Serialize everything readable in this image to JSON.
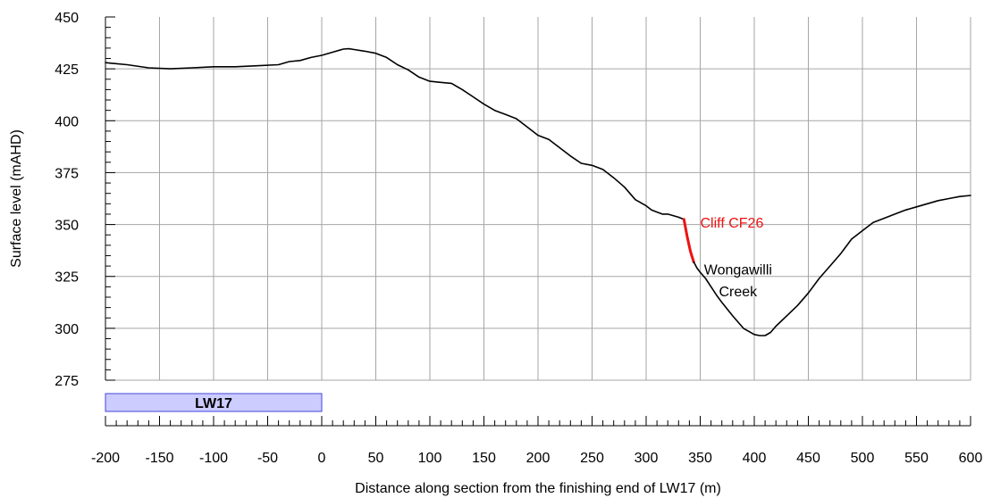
{
  "chart_data": {
    "type": "line",
    "title": "",
    "xlabel": "Distance along section from the finishing end of LW17 (m)",
    "ylabel": "Surface level (mAHD)",
    "xlim": [
      -200,
      600
    ],
    "ylim": [
      275,
      450
    ],
    "x_ticks": [
      -200,
      -150,
      -100,
      -50,
      0,
      50,
      100,
      150,
      200,
      250,
      300,
      350,
      400,
      450,
      500,
      550,
      600
    ],
    "y_ticks": [
      275,
      300,
      325,
      350,
      375,
      400,
      425,
      450
    ],
    "grid": true,
    "series": [
      {
        "color": "#000000",
        "x": [
          -200,
          -180,
          -160,
          -140,
          -120,
          -100,
          -80,
          -60,
          -40,
          -30,
          -20,
          -10,
          0,
          10,
          20,
          25,
          30,
          40,
          50,
          60,
          70,
          80,
          90,
          100,
          110,
          120,
          130,
          140,
          150,
          160,
          170,
          180,
          190,
          200,
          210,
          220,
          230,
          240,
          250,
          260,
          270,
          280,
          290,
          300,
          305,
          310,
          315,
          320,
          330,
          335
        ],
        "y": [
          428,
          427,
          425.5,
          425,
          425.5,
          426,
          426,
          426.5,
          427,
          428.5,
          429,
          430.5,
          431.5,
          433,
          434.5,
          434.7,
          434.3,
          433.5,
          432.5,
          430.5,
          427,
          424.5,
          421,
          419,
          418.5,
          418,
          415,
          411.5,
          408,
          405,
          403,
          401,
          397,
          393,
          391,
          387,
          383,
          379.5,
          378.5,
          376.5,
          372.5,
          368,
          362,
          359,
          357,
          356,
          355,
          355,
          353.5,
          352.5
        ]
      },
      {
        "name": "Cliff CF26",
        "color": "#ee1111",
        "x": [
          335,
          338,
          341,
          344
        ],
        "y": [
          352.5,
          344,
          337,
          332
        ]
      },
      {
        "color": "#000000",
        "x": [
          344,
          347,
          350,
          355,
          360,
          365,
          370,
          380,
          390,
          400,
          405,
          410,
          415,
          420,
          430,
          440,
          450,
          460,
          470,
          480,
          490,
          500,
          510,
          520,
          530,
          540,
          550,
          560,
          570,
          580,
          590,
          600
        ],
        "y": [
          332,
          329,
          327,
          324,
          320,
          316,
          312.5,
          306,
          300,
          297,
          296.5,
          296.5,
          298,
          301,
          306,
          311,
          317,
          324,
          330,
          336,
          343,
          347,
          351,
          353,
          355,
          357,
          358.5,
          360,
          361.5,
          362.5,
          363.5,
          364
        ]
      }
    ],
    "annotations": [
      {
        "text": "Cliff CF26",
        "color": "#ee1111",
        "x": 350,
        "y": 348.5
      },
      {
        "text": "Wongawilli",
        "color": "#000000",
        "x": 385,
        "y": 326
      },
      {
        "text": "Creek",
        "color": "#000000",
        "x": 385,
        "y": 315.5
      }
    ],
    "panel": {
      "label": "LW17",
      "x_start": -200,
      "x_end": 0,
      "fill": "#ccccff",
      "stroke": "#4444dd"
    }
  }
}
